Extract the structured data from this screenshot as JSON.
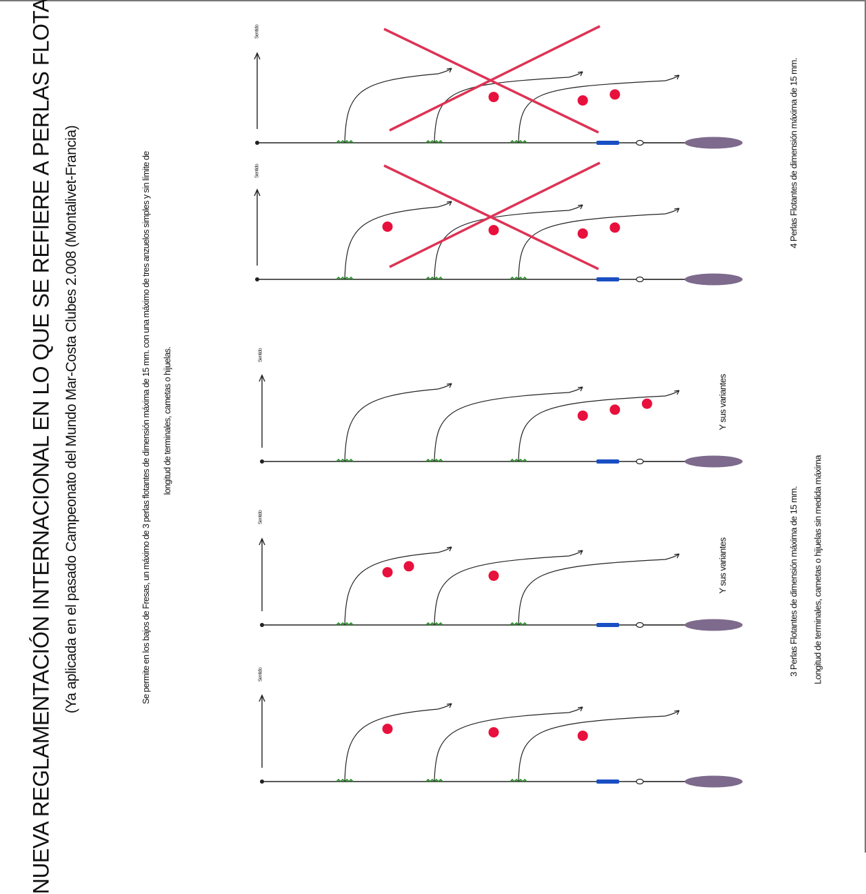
{
  "title": "NUEVA REGLAMENTACIÓN INTERNACIONAL EN LO QUE SE REFIERE A PERLAS FLOTANTES",
  "subtitle": "(Ya aplicada en el pasado Campeonato del Mundo Mar-Costa Clubes 2.008 (Montalivet-Francia)",
  "rule_line_1": "Se permite en los bajos de Fresas, un máximo de 3 perlas flotantes de dimensión máxima de 15 mm. con una máximo de tres anzuelos simples y sin límite de",
  "rule_line_2": "longitud de terminales, cametas o hijuelas.",
  "note_four_pearls": "4 Perlas Flotantes de dimensión máxima de 15 mm.",
  "note_three_line_1": "3 Perlas Flotantes de dimensión máxima de 15 mm.",
  "note_three_line_2": "Longitud de terminales, cametas o hijuelas sin medida máxima",
  "variants_label": "Y sus variantes",
  "direction_label": "Sentido",
  "colors": {
    "pearl": "#e8103c",
    "cross": "#dd3355",
    "sinker": "#7d6a8c",
    "swivel": "#1a4fc4",
    "knot": "#2a8a2a",
    "line": "#222222"
  },
  "rigs": [
    {
      "id": "rig-1",
      "status": "prohibited",
      "pearls_per_snood": [
        0,
        1,
        2
      ]
    },
    {
      "id": "rig-2",
      "status": "prohibited",
      "pearls_per_snood": [
        1,
        1,
        2
      ]
    },
    {
      "id": "rig-3",
      "status": "allowed",
      "pearls_per_snood": [
        0,
        0,
        3
      ]
    },
    {
      "id": "rig-4",
      "status": "allowed",
      "pearls_per_snood": [
        2,
        1,
        0
      ]
    },
    {
      "id": "rig-5",
      "status": "allowed",
      "pearls_per_snood": [
        1,
        1,
        1
      ]
    }
  ]
}
